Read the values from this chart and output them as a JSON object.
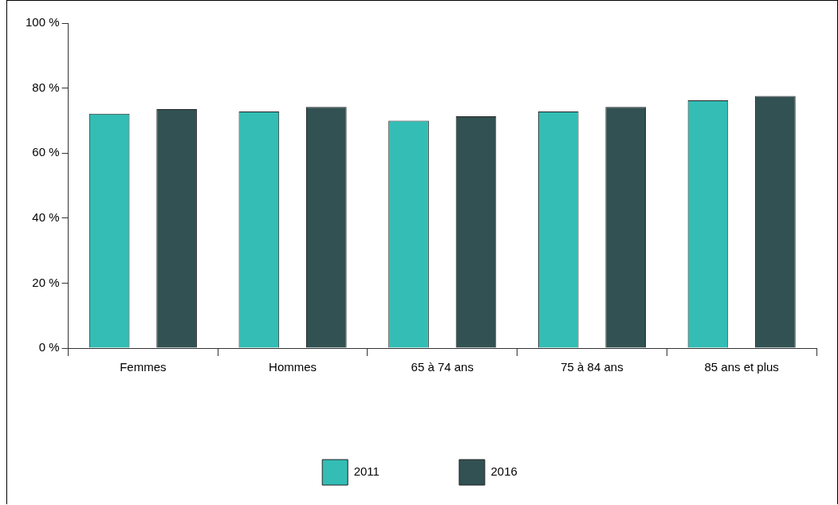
{
  "chart_data": {
    "type": "bar",
    "categories": [
      "Femmes",
      "Hommes",
      "65 à 74 ans",
      "75 à 84 ans",
      "85 ans et plus"
    ],
    "series": [
      {
        "name": "2011",
        "color": "#33bdb5",
        "values": [
          72.1,
          72.8,
          70.0,
          72.8,
          76.2
        ]
      },
      {
        "name": "2016",
        "color": "#325152",
        "values": [
          73.5,
          74.2,
          71.3,
          74.2,
          77.6
        ]
      }
    ],
    "ylim": [
      0,
      100
    ],
    "yticks": [
      {
        "value": 0,
        "label": "0 %"
      },
      {
        "value": 20,
        "label": "20 %"
      },
      {
        "value": 40,
        "label": "40 %"
      },
      {
        "value": 60,
        "label": "60 %"
      },
      {
        "value": 80,
        "label": "80 %"
      },
      {
        "value": 100,
        "label": "100 %"
      }
    ],
    "grid": false,
    "legend": "bottom"
  }
}
